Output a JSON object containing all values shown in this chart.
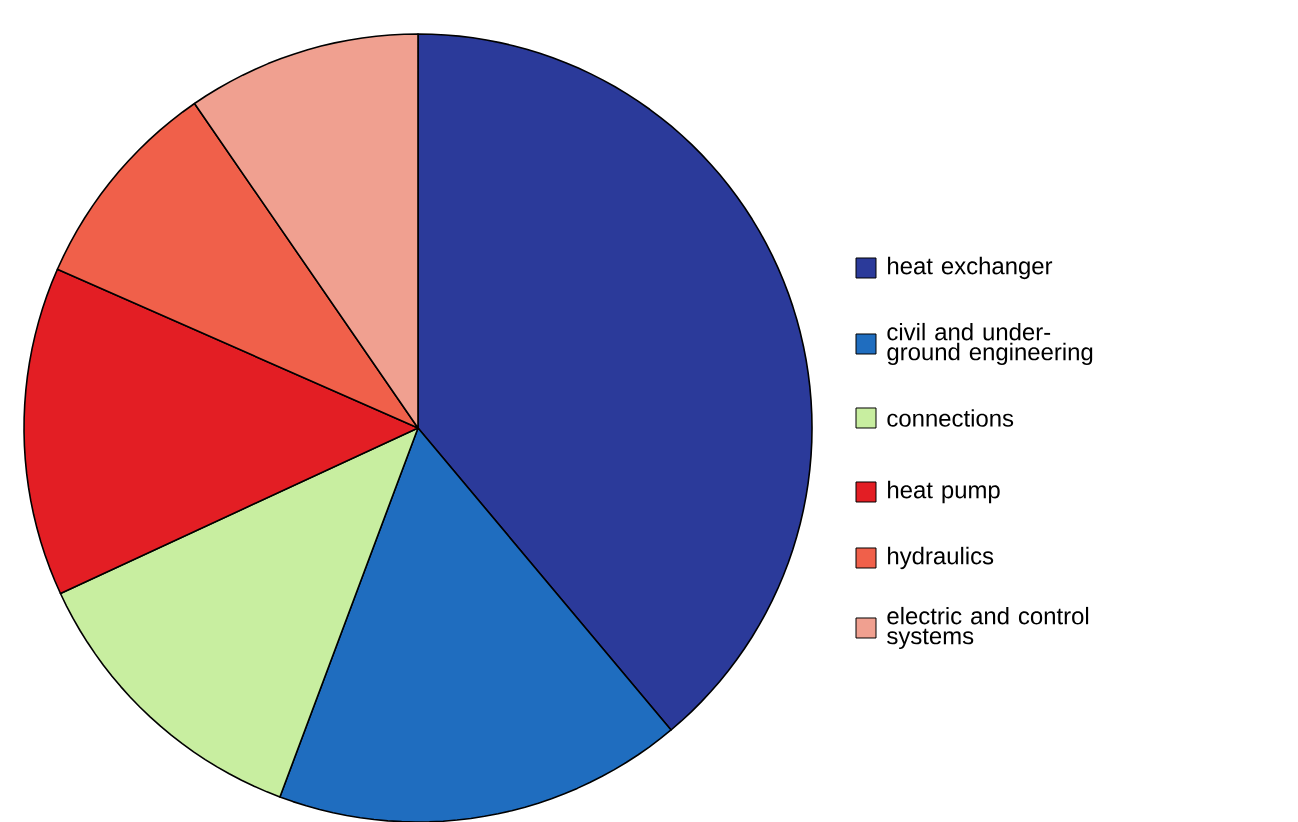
{
  "chart_data": {
    "type": "pie",
    "categories": [
      "heat exchanger",
      "civil and under-ground engineering",
      "connections",
      "heat pump",
      "hydraulics",
      "electric and control systems"
    ],
    "values": [
      38.9,
      16.8,
      12.4,
      13.5,
      8.8,
      9.6
    ],
    "colors": [
      "#2b3a9a",
      "#1f6dbf",
      "#c8eea0",
      "#e31e24",
      "#f0604a",
      "#f0a090"
    ],
    "legend": "right"
  }
}
